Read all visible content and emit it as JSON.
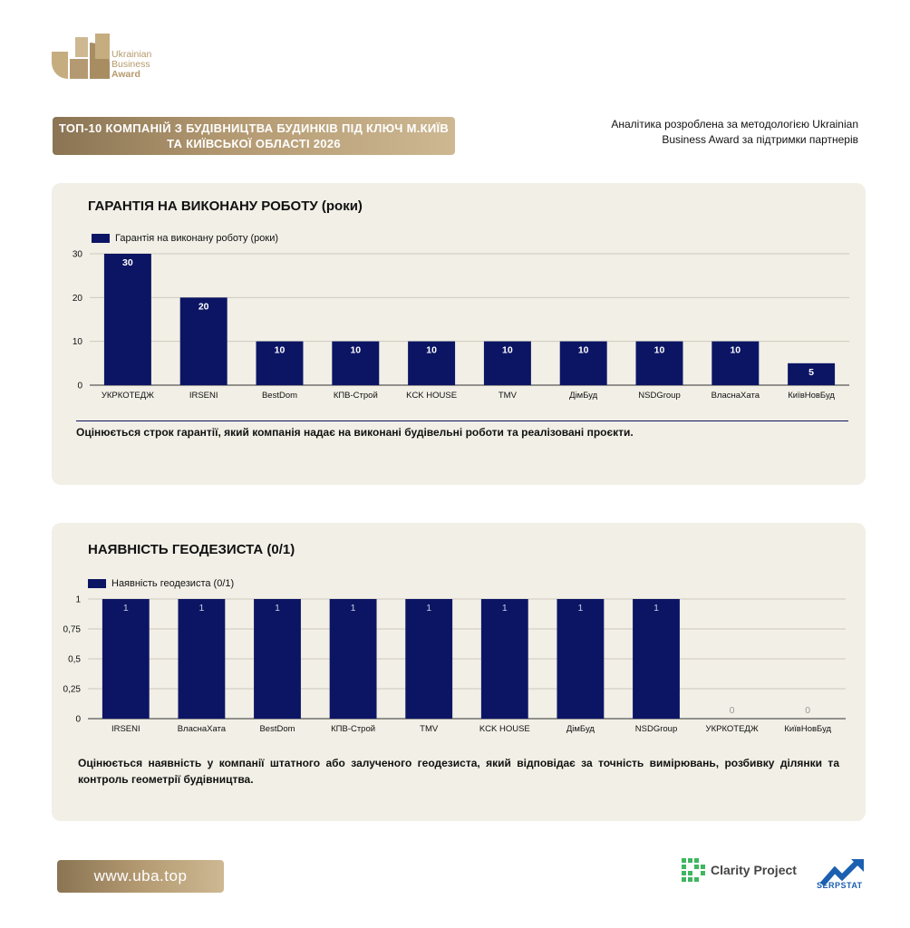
{
  "logo": {
    "line1": "Ukrainian",
    "line2": "Business",
    "line3": "Award"
  },
  "header": {
    "title_line1": "ТОП-10 КОМПАНІЙ З БУДІВНИЦТВА БУДИНКІВ ПІД КЛЮЧ М.КИЇВ",
    "title_line2": "ТА КИЇВСЬКОЇ ОБЛАСТІ 2026",
    "note_line1": "Аналітика розроблена за методологією Ukrainian",
    "note_line2": "Business Award за підтримки партнерів"
  },
  "chart_data": [
    {
      "type": "bar",
      "title": "ГАРАНТІЯ НА ВИКОНАНУ РОБОТУ (роки)",
      "legend": "top-left",
      "categories": [
        "УКРКОТЕДЖ",
        "IRSENI",
        "BestDom",
        "КПВ-Строй",
        "KCK HOUSE",
        "TMV",
        "ДімБуд",
        "NSDGroup",
        "ВласнаХата",
        "КиївНовБуд"
      ],
      "series": [
        {
          "name": "Гарантія на виконану роботу (роки)",
          "values": [
            30,
            20,
            10,
            10,
            10,
            10,
            10,
            10,
            10,
            5
          ]
        }
      ],
      "data_labels": [
        "30",
        "20",
        "10",
        "10",
        "10",
        "10",
        "10",
        "10",
        "10",
        "5"
      ],
      "yticks": [
        "0",
        "10",
        "20",
        "30"
      ],
      "ytick_values": [
        0,
        10,
        20,
        30
      ],
      "ylim": [
        0,
        30
      ],
      "grid": true,
      "description": "Оцінюється строк гарантії, який компанія надає на виконані будівельні роботи та реалізовані проєкти."
    },
    {
      "type": "bar",
      "title": "НАЯВНІСТЬ ГЕОДЕЗИСТА (0/1)",
      "legend": "top-left",
      "categories": [
        "IRSENI",
        "ВласнаХата",
        "BestDom",
        "КПВ-Строй",
        "TMV",
        "KCK HOUSE",
        "ДімБуд",
        "NSDGroup",
        "УКРКОТЕДЖ",
        "КиївНовБуд"
      ],
      "series": [
        {
          "name": "Наявність геодезиста (0/1)",
          "values": [
            1,
            1,
            1,
            1,
            1,
            1,
            1,
            1,
            0,
            0
          ]
        }
      ],
      "data_labels": [
        "1",
        "1",
        "1",
        "1",
        "1",
        "1",
        "1",
        "1",
        "0",
        "0"
      ],
      "yticks": [
        "0",
        "0,25",
        "0,5",
        "0,75",
        "1"
      ],
      "ytick_values": [
        0,
        0.25,
        0.5,
        0.75,
        1
      ],
      "ylim": [
        0,
        1
      ],
      "grid": true,
      "description": "Оцінюється наявність у компанії штатного або залученого геодезиста, який відповідає за точність вимірювань, розбивку ділянки та контроль геометрії будівництва."
    }
  ],
  "footer": {
    "website": "www.uba.top",
    "partner1": "Clarity Project",
    "partner2": "SERPSTAT"
  },
  "colors": {
    "bar": "#0c1564",
    "gold": "#b49a72",
    "card": "#f1efe6"
  }
}
